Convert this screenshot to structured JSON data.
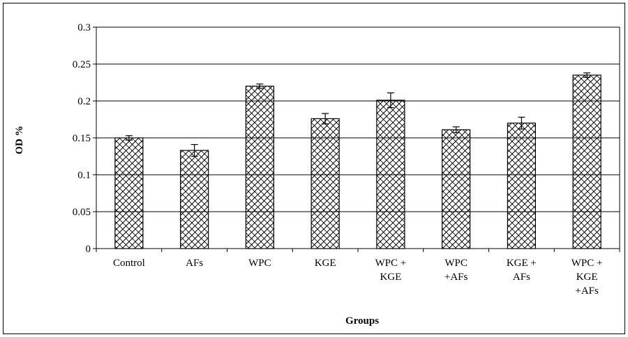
{
  "chart_data": {
    "type": "bar",
    "title": "",
    "xlabel": "Groups",
    "ylabel": "OD %",
    "ylim": [
      0,
      0.3
    ],
    "yticks": [
      "0",
      "0.05",
      "0.1",
      "0.15",
      "0.2",
      "0.25",
      "0.3"
    ],
    "categories": [
      [
        "Control"
      ],
      [
        "AFs"
      ],
      [
        "WPC"
      ],
      [
        "KGE"
      ],
      [
        "WPC +",
        "KGE"
      ],
      [
        "WPC",
        "+AFs"
      ],
      [
        "KGE +",
        "AFs"
      ],
      [
        "WPC +",
        "KGE",
        "+AFs"
      ]
    ],
    "values": [
      0.15,
      0.133,
      0.22,
      0.176,
      0.201,
      0.161,
      0.17,
      0.235
    ],
    "errors": [
      0.003,
      0.008,
      0.003,
      0.007,
      0.01,
      0.004,
      0.008,
      0.003
    ],
    "grid": true,
    "bar_pattern": "cross-hatch",
    "colors": {
      "bar_fill": "#ffffff",
      "hatch": "#000000",
      "gridline": "#000000"
    }
  }
}
